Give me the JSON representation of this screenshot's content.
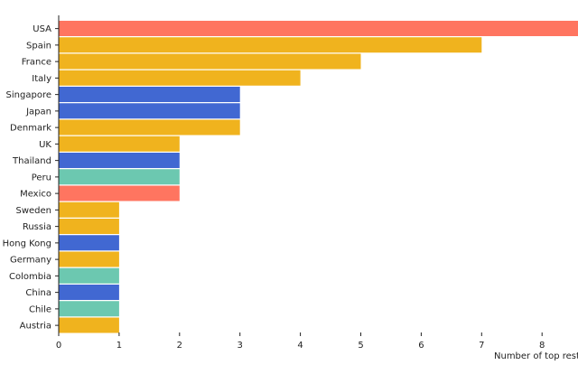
{
  "chart_data": {
    "type": "bar",
    "orientation": "horizontal",
    "categories": [
      "USA",
      "Spain",
      "France",
      "Italy",
      "Singapore",
      "Japan",
      "Denmark",
      "UK",
      "Thailand",
      "Peru",
      "Mexico",
      "Sweden",
      "Russia",
      "Hong Kong",
      "Germany",
      "Colombia",
      "China",
      "Chile",
      "Austria"
    ],
    "values": [
      9,
      7,
      5,
      4,
      3,
      3,
      3,
      2,
      2,
      2,
      2,
      1,
      1,
      1,
      1,
      1,
      1,
      1,
      1
    ],
    "colors": [
      "#ff7560",
      "#f0b31e",
      "#f0b31e",
      "#f0b31e",
      "#4168d2",
      "#4168d2",
      "#f0b31e",
      "#f0b31e",
      "#4168d2",
      "#6cc8b0",
      "#ff7560",
      "#f0b31e",
      "#f0b31e",
      "#4168d2",
      "#f0b31e",
      "#6cc8b0",
      "#4168d2",
      "#6cc8b0",
      "#f0b31e"
    ],
    "x_ticks": [
      0,
      1,
      2,
      3,
      4,
      5,
      6,
      7,
      8
    ],
    "x_tick_labels": [
      "0",
      "1",
      "2",
      "3",
      "4",
      "5",
      "6",
      "7",
      "8"
    ],
    "xlabel": "Number of top resta",
    "ylabel": "",
    "xlim": [
      0,
      8.65
    ],
    "grid": false,
    "legend": "none"
  }
}
